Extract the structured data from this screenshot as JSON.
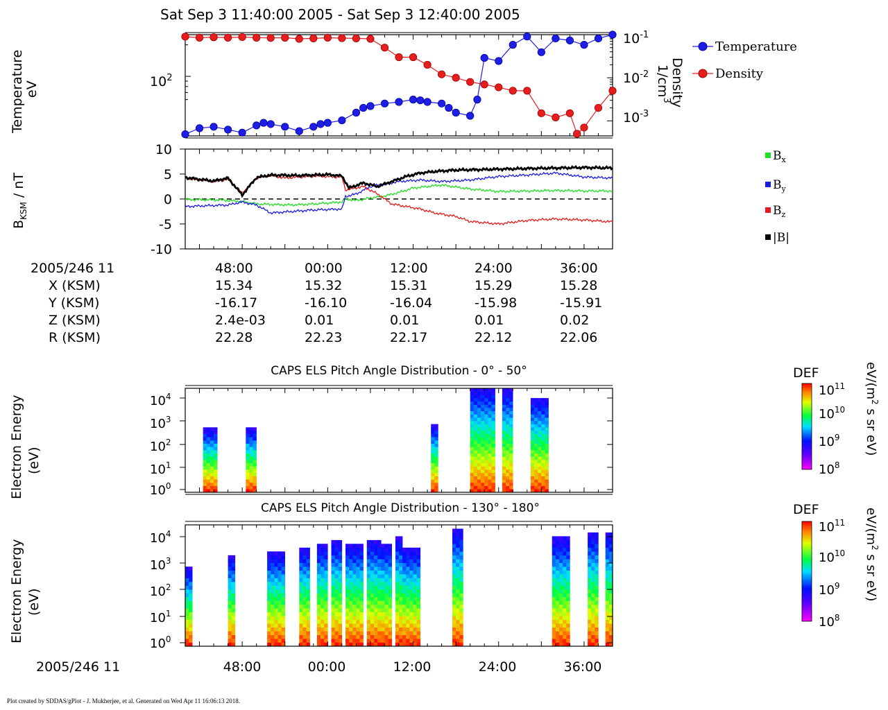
{
  "title": "Sat Sep 3 11:40:00 2005 - Sat Sep 3 12:40:00 2005",
  "footer": "Plot created by SDDAS/gPlot - J. Mukherjee, et al.  Generated on Wed Apr 11 16:06:13 2018.",
  "colors": {
    "temperature": "#1e1ee6",
    "density": "#e61e1e",
    "bx": "#22dd22",
    "by": "#1a1ae6",
    "bz": "#e61a1a",
    "btot": "#000000"
  },
  "ephemeris": {
    "header": "2005/246 11",
    "row_labels": [
      "X (KSM)",
      "Y (KSM)",
      "Z (KSM)",
      "R (KSM)"
    ],
    "times": [
      "48:00",
      "00:00",
      "12:00",
      "24:00",
      "36:00"
    ],
    "values": [
      [
        "15.34",
        "15.32",
        "15.31",
        "15.29",
        "15.28"
      ],
      [
        "-16.17",
        "-16.10",
        "-16.04",
        "-15.98",
        "-15.91"
      ],
      [
        "2.4e-03",
        "0.01",
        "0.01",
        "0.01",
        "0.02"
      ],
      [
        "22.28",
        "22.23",
        "22.17",
        "22.12",
        "22.06"
      ]
    ]
  },
  "chart_data": [
    {
      "type": "scatter",
      "x_unit": "minutes after 11:40",
      "ylabel_lines": [
        "Temperature",
        "eV"
      ],
      "y2label_lines": [
        "Density",
        "1/cm3"
      ],
      "y_ticks": [
        "10^2"
      ],
      "y2_ticks": [
        "10^-1",
        "10^-2",
        "10^-3"
      ],
      "y_scale": "log",
      "legend_position": "right",
      "series": [
        {
          "name": "Temperature",
          "axis": "left",
          "unit": "eV",
          "x": [
            0,
            2,
            4,
            6,
            8,
            10,
            11,
            12,
            14,
            16,
            18,
            19,
            20,
            22,
            24,
            25,
            26,
            28,
            30,
            32,
            33,
            34,
            36,
            37,
            38,
            40,
            41,
            42,
            44,
            46,
            48,
            50,
            52,
            54,
            56,
            58,
            60
          ],
          "y": [
            28,
            32,
            33,
            31,
            29,
            34,
            36,
            35,
            33,
            30,
            33,
            35,
            36,
            38,
            45,
            50,
            52,
            55,
            57,
            60,
            59,
            57,
            55,
            50,
            45,
            42,
            60,
            150,
            140,
            200,
            240,
            170,
            230,
            220,
            200,
            230,
            250
          ]
        },
        {
          "name": "Density",
          "axis": "right",
          "unit": "1/cm3",
          "x": [
            0,
            2,
            4,
            6,
            8,
            10,
            12,
            14,
            16,
            18,
            20,
            22,
            24,
            26,
            28,
            30,
            32,
            34,
            36,
            38,
            40,
            42,
            44,
            46,
            48,
            50,
            52,
            54,
            55,
            56,
            58,
            60
          ],
          "y": [
            0.09,
            0.085,
            0.087,
            0.085,
            0.088,
            0.085,
            0.084,
            0.085,
            0.08,
            0.082,
            0.085,
            0.083,
            0.082,
            0.08,
            0.05,
            0.03,
            0.03,
            0.02,
            0.012,
            0.01,
            0.008,
            0.007,
            0.006,
            0.005,
            0.005,
            0.0015,
            0.0012,
            0.0015,
            0.0005,
            0.0007,
            0.002,
            0.005
          ]
        }
      ]
    },
    {
      "type": "line",
      "x_unit": "minutes after 11:40",
      "ylabel": "B_KSM / nT",
      "ylim": [
        -10,
        10
      ],
      "y_ticks": [
        "10",
        "5",
        "0",
        "-5",
        "-10"
      ],
      "legend_position": "right",
      "series": [
        {
          "name": "Bx",
          "x": [
            0,
            5,
            8,
            10,
            15,
            18,
            22,
            22.5,
            24,
            26,
            28,
            30,
            32,
            36,
            40,
            44,
            48,
            52,
            56,
            60
          ],
          "y": [
            -0.1,
            -0.2,
            -0.5,
            -1.0,
            -1.2,
            -1.0,
            -0.6,
            0.0,
            -0.3,
            0.2,
            0.6,
            1.3,
            2.2,
            2.8,
            2.0,
            1.5,
            1.6,
            1.7,
            1.6,
            1.6
          ]
        },
        {
          "name": "By",
          "x": [
            0,
            6,
            8,
            10,
            12,
            15,
            18,
            22,
            22.5,
            24,
            26,
            28,
            30,
            33,
            36,
            40,
            44,
            48,
            52,
            56,
            60
          ],
          "y": [
            -1.5,
            -1.2,
            -0.6,
            -1.2,
            -2.8,
            -2.5,
            -2.2,
            -2.0,
            0.5,
            1.0,
            2.5,
            3.0,
            3.5,
            3.8,
            3.5,
            3.8,
            4.5,
            4.8,
            5.2,
            4.4,
            4.2
          ]
        },
        {
          "name": "Bz",
          "x": [
            0,
            4,
            6,
            8,
            10,
            12,
            14,
            18,
            22,
            22.5,
            25,
            27,
            29,
            31,
            33,
            35,
            38,
            40,
            44,
            48,
            52,
            56,
            60
          ],
          "y": [
            4.2,
            3.5,
            4.0,
            1.2,
            4.2,
            4.7,
            4.2,
            4.6,
            4.4,
            1.8,
            2.5,
            1.0,
            -1.0,
            -1.5,
            -2.0,
            -2.8,
            -3.5,
            -4.5,
            -5.0,
            -4.3,
            -4.0,
            -4.2,
            -4.6
          ]
        },
        {
          "name": "|B|",
          "x": [
            0,
            4,
            6,
            8,
            10,
            12,
            16,
            20,
            22,
            23,
            25,
            27,
            29,
            31,
            33,
            35,
            38,
            42,
            48,
            52,
            56,
            60
          ],
          "y": [
            4.3,
            3.6,
            4.2,
            0.8,
            4.3,
            4.8,
            4.7,
            4.9,
            4.6,
            2.2,
            3.2,
            2.5,
            3.5,
            4.5,
            5.2,
            5.5,
            5.8,
            5.9,
            6.1,
            6.2,
            6.3,
            6.2
          ]
        }
      ]
    },
    {
      "type": "heatmap",
      "title": "CAPS ELS Pitch Angle Distribution - 0° - 50°",
      "ylabel_lines": [
        "Electron Energy",
        "(eV)"
      ],
      "y_scale": "log",
      "y_ticks": [
        "10^4",
        "10^3",
        "10^2",
        "10^1",
        "10^0"
      ],
      "colorbar": {
        "label": "DEF",
        "unit": "eV/(m^2 s sr eV)",
        "ticks": [
          "10^11",
          "10^10",
          "10^9",
          "10^8"
        ]
      },
      "bursts_minutes": [
        [
          2.5,
          4.5
        ],
        [
          8.5,
          10
        ],
        [
          34.5,
          35.5
        ],
        [
          40,
          43.5
        ],
        [
          44.5,
          46
        ],
        [
          48.5,
          51
        ]
      ]
    },
    {
      "type": "heatmap",
      "title": "CAPS ELS Pitch Angle Distribution - 130° - 180°",
      "ylabel_lines": [
        "Electron Energy",
        "(eV)"
      ],
      "y_scale": "log",
      "y_ticks": [
        "10^4",
        "10^3",
        "10^2",
        "10^1",
        "10^0"
      ],
      "colorbar": {
        "label": "DEF",
        "unit": "eV/(m^2 s sr eV)",
        "ticks": [
          "10^11",
          "10^10",
          "10^9",
          "10^8"
        ]
      },
      "x_header": "2005/246 11",
      "x_ticks": [
        "48:00",
        "00:00",
        "12:00",
        "24:00",
        "36:00"
      ],
      "bursts_minutes": [
        [
          0,
          1
        ],
        [
          6,
          7
        ],
        [
          11.5,
          14
        ],
        [
          16,
          17.5
        ],
        [
          18.5,
          20
        ],
        [
          20.5,
          22
        ],
        [
          22.5,
          25
        ],
        [
          25.5,
          27.5
        ],
        [
          27.5,
          29
        ],
        [
          29.5,
          30.5
        ],
        [
          30.5,
          33
        ],
        [
          37.5,
          39
        ],
        [
          51.5,
          54
        ],
        [
          56.5,
          58
        ],
        [
          59,
          60
        ]
      ]
    }
  ]
}
